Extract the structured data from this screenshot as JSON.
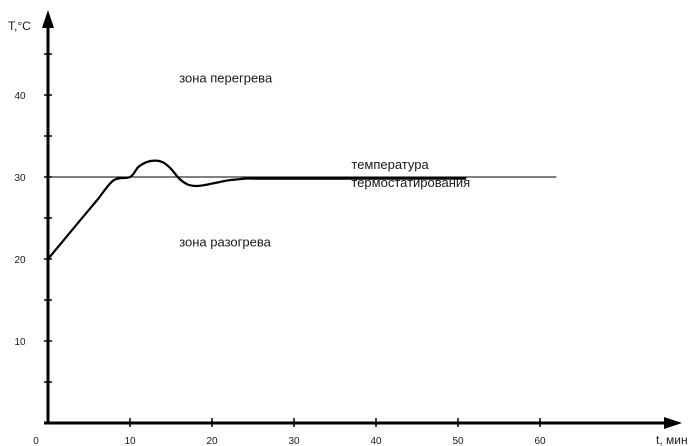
{
  "chart_data": {
    "type": "line",
    "title": "",
    "xlabel": "t, мин",
    "ylabel": "T,°C",
    "xlim": [
      0,
      78
    ],
    "ylim": [
      0,
      50
    ],
    "x_ticks": [
      0,
      10,
      20,
      30,
      40,
      50,
      60
    ],
    "y_ticks": [
      10,
      20,
      30,
      40
    ],
    "x_tick_labels": [
      "0",
      "10",
      "20",
      "30",
      "40",
      "50",
      "60"
    ],
    "y_tick_labels": [
      "10",
      "20",
      "30",
      "40"
    ],
    "grid": false,
    "reference_line": {
      "y": 30,
      "x_range": [
        0,
        62
      ]
    },
    "series": [
      {
        "x": [
          0,
          2,
          4,
          6,
          8,
          10,
          11,
          12,
          13,
          14,
          15,
          16,
          17,
          18,
          19,
          20,
          21,
          22,
          23,
          24,
          25,
          30,
          35,
          40,
          45,
          51
        ],
        "y": [
          20,
          22.4,
          24.8,
          27.2,
          29.6,
          30,
          31.2,
          31.8,
          32,
          31.8,
          31,
          29.8,
          29.1,
          28.9,
          29.0,
          29.2,
          29.4,
          29.6,
          29.7,
          29.8,
          29.8,
          29.8,
          29.8,
          29.8,
          29.8,
          29.8
        ]
      }
    ],
    "annotations": [
      {
        "text": "зона перегрева",
        "x": 16,
        "y": 41.5
      },
      {
        "text": "температура",
        "x": 37,
        "y": 31
      },
      {
        "text": "термостатирования",
        "x": 37,
        "y": 28.8
      },
      {
        "text": "зона разогрева",
        "x": 16,
        "y": 21.5
      }
    ]
  }
}
